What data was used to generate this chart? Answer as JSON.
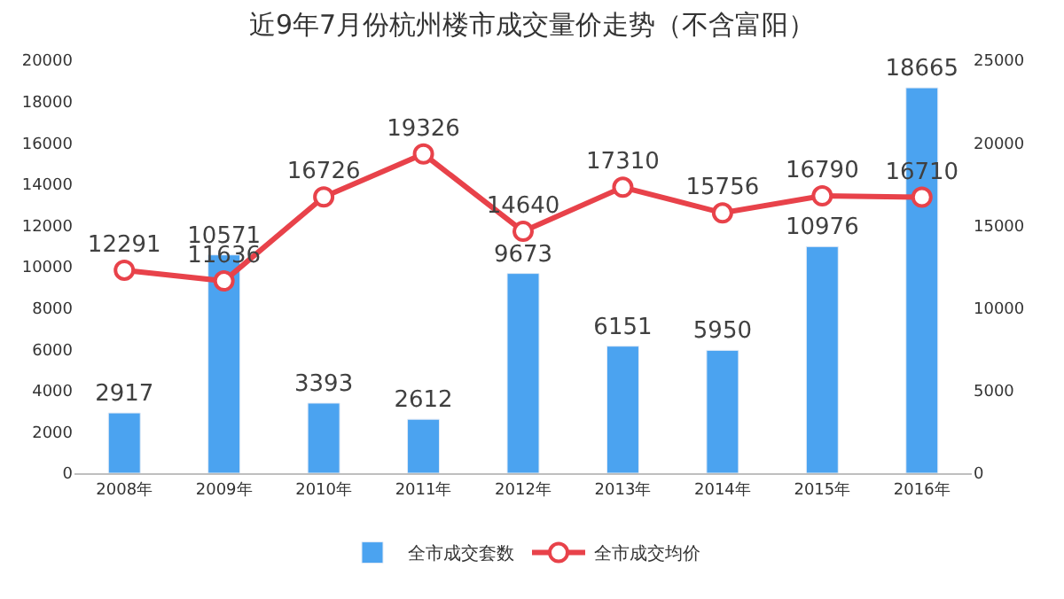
{
  "chart_data": {
    "type": "bar",
    "title": "近9年7月份杭州楼市成交量价走势（不含富阳）",
    "categories": [
      "2008年",
      "2009年",
      "2010年",
      "2011年",
      "2012年",
      "2013年",
      "2014年",
      "2015年",
      "2016年"
    ],
    "series": [
      {
        "name": "全市成交套数",
        "color": "#4ba3f0",
        "values": [
          2917,
          10571,
          3393,
          2612,
          9673,
          6151,
          5950,
          10976,
          18665
        ]
      },
      {
        "name": "全市成交均价",
        "type": "line",
        "axis": "y2",
        "color": "#e8424a",
        "marker": "circle",
        "values": [
          12291,
          11636,
          16726,
          19326,
          14640,
          17310,
          15756,
          16790,
          16710
        ]
      }
    ],
    "ylim": [
      0,
      20000
    ],
    "yticks": [
      0,
      2000,
      4000,
      6000,
      8000,
      10000,
      12000,
      14000,
      16000,
      18000,
      20000
    ],
    "y2lim": [
      0,
      25000
    ],
    "y2ticks": [
      0,
      5000,
      10000,
      15000,
      20000,
      25000
    ],
    "data_labels": true,
    "legend": "bottom"
  }
}
